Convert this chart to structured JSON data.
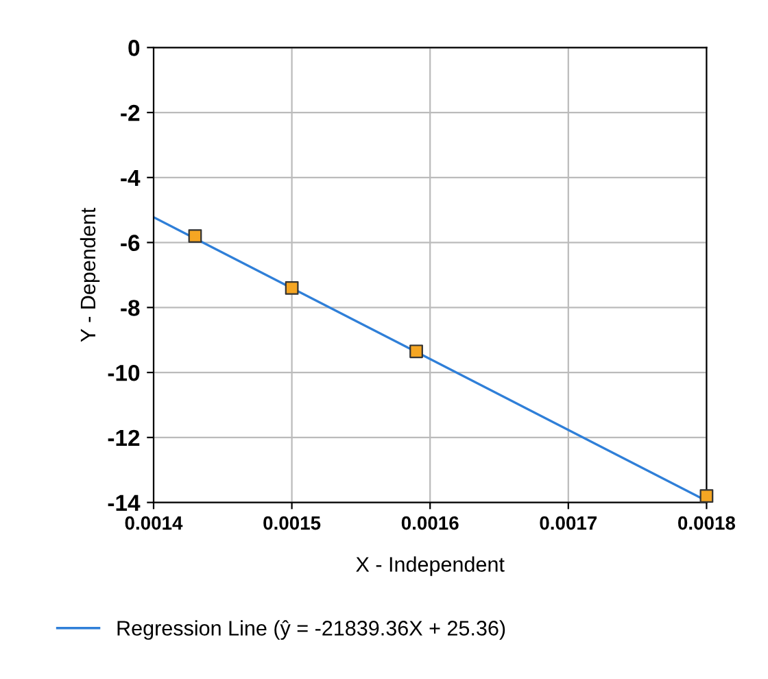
{
  "chart_data": {
    "type": "scatter",
    "xlabel": "X - Independent",
    "ylabel": "Y - Dependent",
    "series": [
      {
        "color": "#f5a623",
        "marker": "square",
        "x": [
          0.00143,
          0.0015,
          0.00159,
          0.0018
        ],
        "values": [
          -5.8,
          -7.4,
          -9.35,
          -13.8
        ]
      },
      {
        "type": "line",
        "name": "Regression Line (ŷ = -21839.36X + 25.36)",
        "color": "#2f7fd8",
        "marker": "none",
        "x": [
          0.0014,
          0.0018
        ],
        "values": [
          -5.22,
          -13.95
        ]
      }
    ],
    "xlim": [
      0.0014,
      0.0018
    ],
    "xticks": [
      0.0014,
      0.0015,
      0.0016,
      0.0017,
      0.0018
    ],
    "ylim": [
      -14,
      0
    ],
    "yticks": [
      0,
      -2,
      -4,
      -6,
      -8,
      -10,
      -12,
      -14
    ],
    "grid": true,
    "legend": "bottom"
  }
}
